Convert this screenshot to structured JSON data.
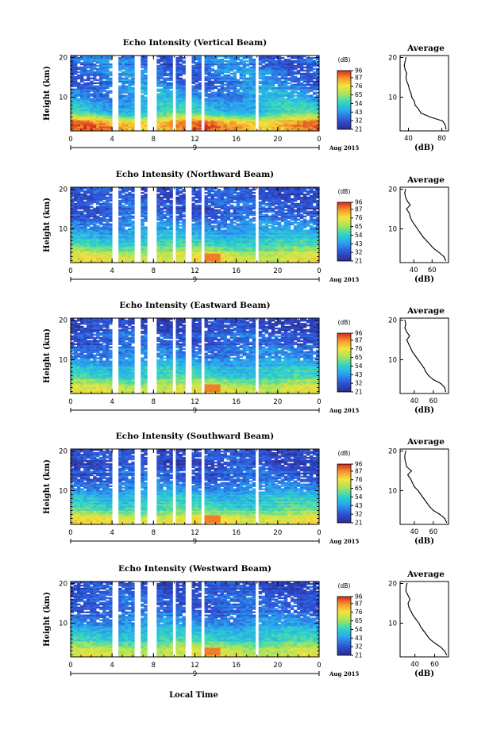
{
  "figure": {
    "xlabel": "Local Time",
    "date_label": "Aug 2015",
    "day_label": "9",
    "colorbar_unit": "(dB)",
    "colorbar_ticks": [
      "96",
      "87",
      "76",
      "65",
      "54",
      "43",
      "32",
      "21"
    ],
    "average_title": "Average",
    "average_xlabel": "(dB)",
    "height_label": "Height (km)"
  },
  "chart_data": [
    {
      "type": "heatmap",
      "title": "Echo Intensity (Vertical Beam)",
      "xlabel": "Local Time",
      "ylabel": "Height (km)",
      "x_ticks": [
        "0",
        "4",
        "8",
        "12",
        "16",
        "20",
        "0"
      ],
      "xlim": [
        0,
        24
      ],
      "y_ticks": [
        "10",
        "20"
      ],
      "ylim": [
        1.5,
        20.5
      ],
      "colorbar": {
        "unit": "(dB)",
        "range": [
          21,
          96
        ],
        "ticks": [
          96,
          87,
          76,
          65,
          54,
          43,
          32,
          21
        ]
      },
      "data_gaps_hours": [
        [
          4.1,
          4.5
        ],
        [
          6.2,
          6.7
        ],
        [
          7.3,
          8.3
        ],
        [
          9.9,
          10.3
        ],
        [
          11.0,
          11.8
        ],
        [
          12.5,
          12.9
        ],
        [
          17.7,
          18.2
        ]
      ],
      "average_profile": {
        "xlabel": "(dB)",
        "x_ticks": [
          40,
          80
        ],
        "xlim": [
          30,
          88
        ],
        "height_km": [
          2,
          3,
          4,
          5,
          6,
          7,
          8,
          9,
          10,
          11,
          12,
          13,
          14,
          15,
          16,
          17,
          18,
          19,
          20
        ],
        "values_db": [
          85,
          84,
          81,
          66,
          55,
          52,
          48,
          47,
          44,
          43,
          41,
          40,
          38,
          37,
          38,
          36,
          35,
          36,
          37
        ]
      }
    },
    {
      "type": "heatmap",
      "title": "Echo Intensity (Northward Beam)",
      "xlabel": "Local Time",
      "ylabel": "Height (km)",
      "x_ticks": [
        "0",
        "4",
        "8",
        "12",
        "16",
        "20",
        "0"
      ],
      "xlim": [
        0,
        24
      ],
      "y_ticks": [
        "10",
        "20"
      ],
      "ylim": [
        1.5,
        20.5
      ],
      "colorbar": {
        "unit": "(dB)",
        "range": [
          21,
          96
        ],
        "ticks": [
          96,
          87,
          76,
          65,
          54,
          43,
          32,
          21
        ]
      },
      "data_gaps_hours": [
        [
          4.1,
          4.5
        ],
        [
          6.2,
          6.7
        ],
        [
          7.3,
          8.3
        ],
        [
          9.9,
          10.3
        ],
        [
          11.0,
          11.8
        ],
        [
          12.5,
          12.9
        ],
        [
          17.7,
          18.2
        ]
      ],
      "average_profile": {
        "xlabel": "(dB)",
        "x_ticks": [
          40,
          60
        ],
        "xlim": [
          25,
          78
        ],
        "height_km": [
          2,
          3,
          4,
          5,
          6,
          7,
          8,
          9,
          10,
          11,
          12,
          13,
          14,
          15,
          16,
          17,
          18,
          19,
          20
        ],
        "values_db": [
          75,
          73,
          68,
          62,
          58,
          54,
          50,
          47,
          44,
          41,
          38,
          36,
          35,
          32,
          36,
          33,
          31,
          30,
          31
        ]
      }
    },
    {
      "type": "heatmap",
      "title": "Echo Intensity (Eastward Beam)",
      "xlabel": "Local Time",
      "ylabel": "Height (km)",
      "x_ticks": [
        "0",
        "4",
        "8",
        "12",
        "16",
        "20",
        "0"
      ],
      "xlim": [
        0,
        24
      ],
      "y_ticks": [
        "10",
        "20"
      ],
      "ylim": [
        1.5,
        20.5
      ],
      "colorbar": {
        "unit": "(dB)",
        "range": [
          21,
          96
        ],
        "ticks": [
          96,
          87,
          76,
          65,
          54,
          43,
          32,
          21
        ]
      },
      "data_gaps_hours": [
        [
          4.1,
          4.5
        ],
        [
          6.2,
          6.7
        ],
        [
          7.3,
          8.3
        ],
        [
          9.9,
          10.3
        ],
        [
          11.0,
          11.8
        ],
        [
          12.5,
          12.9
        ],
        [
          17.7,
          18.2
        ]
      ],
      "average_profile": {
        "xlabel": "(dB)",
        "x_ticks": [
          40,
          60
        ],
        "xlim": [
          25,
          76
        ],
        "height_km": [
          2,
          3,
          4,
          5,
          6,
          7,
          8,
          9,
          10,
          11,
          12,
          13,
          14,
          15,
          16,
          17,
          18,
          19,
          20
        ],
        "values_db": [
          73,
          72,
          68,
          60,
          55,
          52,
          50,
          47,
          44,
          41,
          38,
          36,
          34,
          32,
          35,
          32,
          30,
          31,
          30
        ]
      }
    },
    {
      "type": "heatmap",
      "title": "Echo Intensity (Southward Beam)",
      "xlabel": "Local Time",
      "ylabel": "Height (km)",
      "x_ticks": [
        "0",
        "4",
        "8",
        "12",
        "16",
        "20",
        "0"
      ],
      "xlim": [
        0,
        24
      ],
      "y_ticks": [
        "10",
        "20"
      ],
      "ylim": [
        1.5,
        20.5
      ],
      "colorbar": {
        "unit": "(dB)",
        "range": [
          21,
          96
        ],
        "ticks": [
          96,
          87,
          76,
          65,
          54,
          43,
          32,
          21
        ]
      },
      "data_gaps_hours": [
        [
          4.1,
          4.5
        ],
        [
          6.2,
          6.7
        ],
        [
          7.3,
          8.3
        ],
        [
          9.9,
          10.3
        ],
        [
          11.0,
          11.8
        ],
        [
          12.5,
          12.9
        ],
        [
          17.7,
          18.2
        ]
      ],
      "average_profile": {
        "xlabel": "(dB)",
        "x_ticks": [
          40,
          60
        ],
        "xlim": [
          25,
          76
        ],
        "height_km": [
          2,
          3,
          4,
          5,
          6,
          7,
          8,
          9,
          10,
          11,
          12,
          13,
          14,
          15,
          16,
          17,
          18,
          19,
          20
        ],
        "values_db": [
          74,
          72,
          67,
          60,
          56,
          53,
          50,
          47,
          44,
          40,
          38,
          36,
          33,
          37,
          32,
          31,
          30,
          30,
          31
        ]
      }
    },
    {
      "type": "heatmap",
      "title": "Echo Intensity (Westward Beam)",
      "xlabel": "Local Time",
      "ylabel": "Height (km)",
      "x_ticks": [
        "0",
        "4",
        "8",
        "12",
        "16",
        "20",
        "0"
      ],
      "xlim": [
        0,
        24
      ],
      "y_ticks": [
        "10",
        "20"
      ],
      "ylim": [
        1.5,
        20.5
      ],
      "colorbar": {
        "unit": "(dB)",
        "range": [
          21,
          96
        ],
        "ticks": [
          96,
          87,
          76,
          65,
          54,
          43,
          32,
          21
        ]
      },
      "data_gaps_hours": [
        [
          4.1,
          4.5
        ],
        [
          6.2,
          6.7
        ],
        [
          7.3,
          8.3
        ],
        [
          9.9,
          10.3
        ],
        [
          11.0,
          11.8
        ],
        [
          12.5,
          12.9
        ],
        [
          17.7,
          18.2
        ]
      ],
      "average_profile": {
        "xlabel": "(dB)",
        "x_ticks": [
          40,
          60
        ],
        "xlim": [
          25,
          74
        ],
        "height_km": [
          2,
          3,
          4,
          5,
          6,
          7,
          8,
          9,
          10,
          11,
          12,
          13,
          14,
          15,
          16,
          17,
          18,
          19,
          20
        ],
        "values_db": [
          72,
          70,
          66,
          60,
          55,
          52,
          49,
          46,
          44,
          41,
          38,
          36,
          34,
          33,
          35,
          33,
          31,
          31,
          32
        ]
      }
    }
  ]
}
